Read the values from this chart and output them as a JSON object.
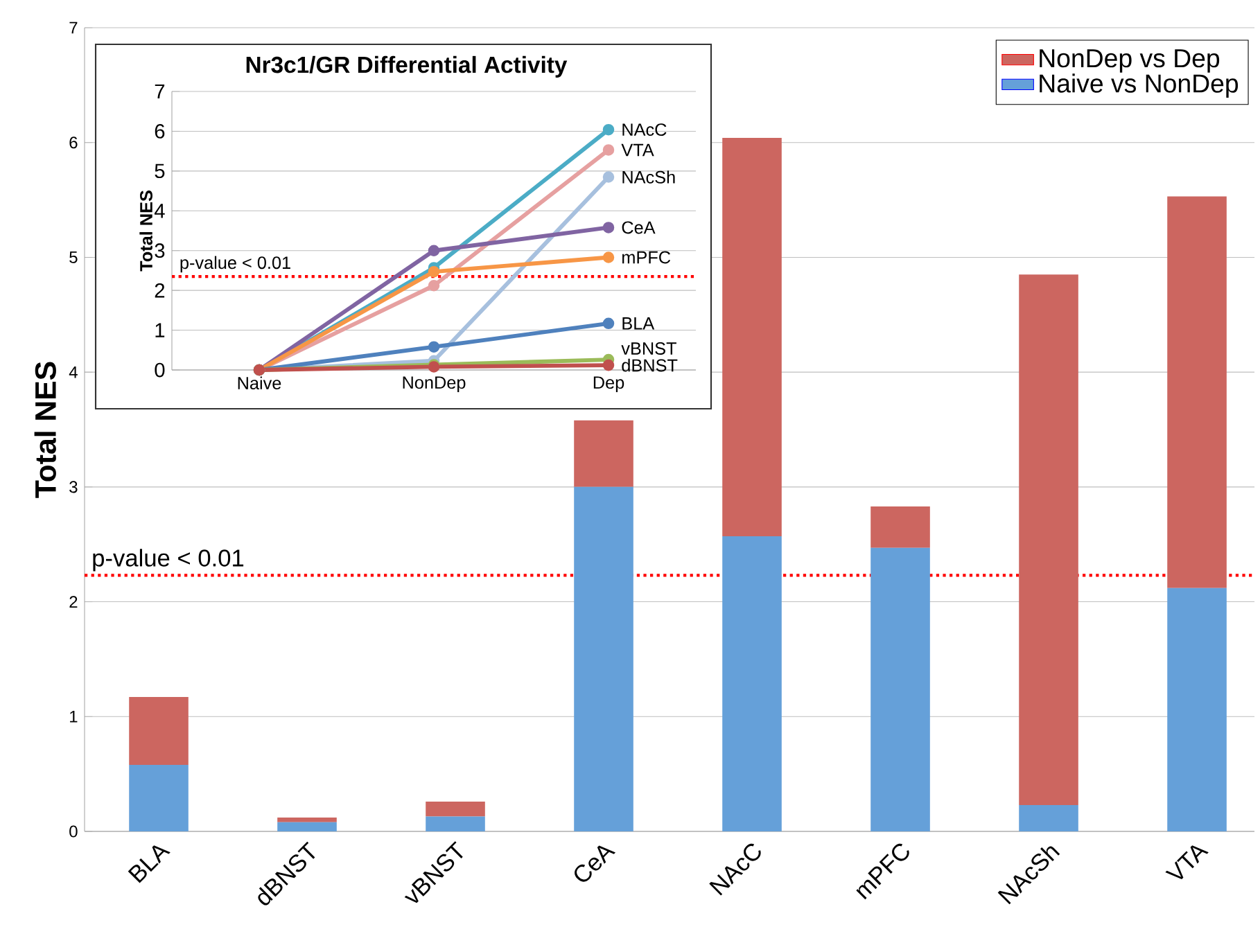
{
  "chart_data": [
    {
      "type": "bar",
      "stacked": true,
      "categories": [
        "BLA",
        "dBNST",
        "vBNST",
        "CeA",
        "NAcC",
        "mPFC",
        "NAcSh",
        "VTA"
      ],
      "series": [
        {
          "name": "Naive vs NonDep",
          "color": "#65a0d9",
          "values": [
            0.58,
            0.08,
            0.13,
            3.0,
            2.57,
            2.47,
            0.23,
            2.12
          ]
        },
        {
          "name": "NonDep vs Dep",
          "color": "#cc6660",
          "values": [
            0.59,
            0.04,
            0.13,
            0.58,
            3.47,
            0.36,
            4.62,
            3.41
          ]
        }
      ],
      "ylabel": "Total NES",
      "ylim": [
        0,
        7
      ],
      "yticks": [
        0,
        1,
        2,
        3,
        4,
        5,
        6,
        7
      ],
      "grid": "y",
      "legend": "top right",
      "ref_lines": [
        {
          "axis": "y",
          "value": 2.23,
          "label": "p-value < 0.01",
          "color": "#ff0000",
          "line_style": "dotted"
        }
      ]
    },
    {
      "type": "line",
      "title": "Nr3c1/GR Differential Activity",
      "categories": [
        "Naive",
        "NonDep",
        "Dep"
      ],
      "series": [
        {
          "name": "NAcC",
          "color": "#4bacc6",
          "values": [
            0,
            2.57,
            6.04
          ]
        },
        {
          "name": "VTA",
          "color": "#e6a0a0",
          "values": [
            0,
            2.12,
            5.53
          ]
        },
        {
          "name": "NAcSh",
          "color": "#a7c0de",
          "values": [
            0,
            0.23,
            4.85
          ]
        },
        {
          "name": "CeA",
          "color": "#8064a2",
          "values": [
            0,
            3.0,
            3.58
          ]
        },
        {
          "name": "mPFC",
          "color": "#f79646",
          "values": [
            0,
            2.47,
            2.83
          ]
        },
        {
          "name": "BLA",
          "color": "#4f81bd",
          "values": [
            0,
            0.58,
            1.17
          ]
        },
        {
          "name": "vBNST",
          "color": "#9bbb59",
          "values": [
            0,
            0.13,
            0.26
          ]
        },
        {
          "name": "dBNST",
          "color": "#c0504d",
          "values": [
            0,
            0.08,
            0.12
          ]
        }
      ],
      "ylabel": "Total NES",
      "ylim": [
        0,
        7
      ],
      "yticks": [
        0,
        1,
        2,
        3,
        4,
        5,
        6,
        7
      ],
      "grid": "y",
      "marker": "circle",
      "legend": false,
      "ref_lines": [
        {
          "axis": "y",
          "value": 2.35,
          "label": "p-value < 0.01",
          "color": "#ff0000",
          "line_style": "dotted"
        }
      ]
    }
  ]
}
